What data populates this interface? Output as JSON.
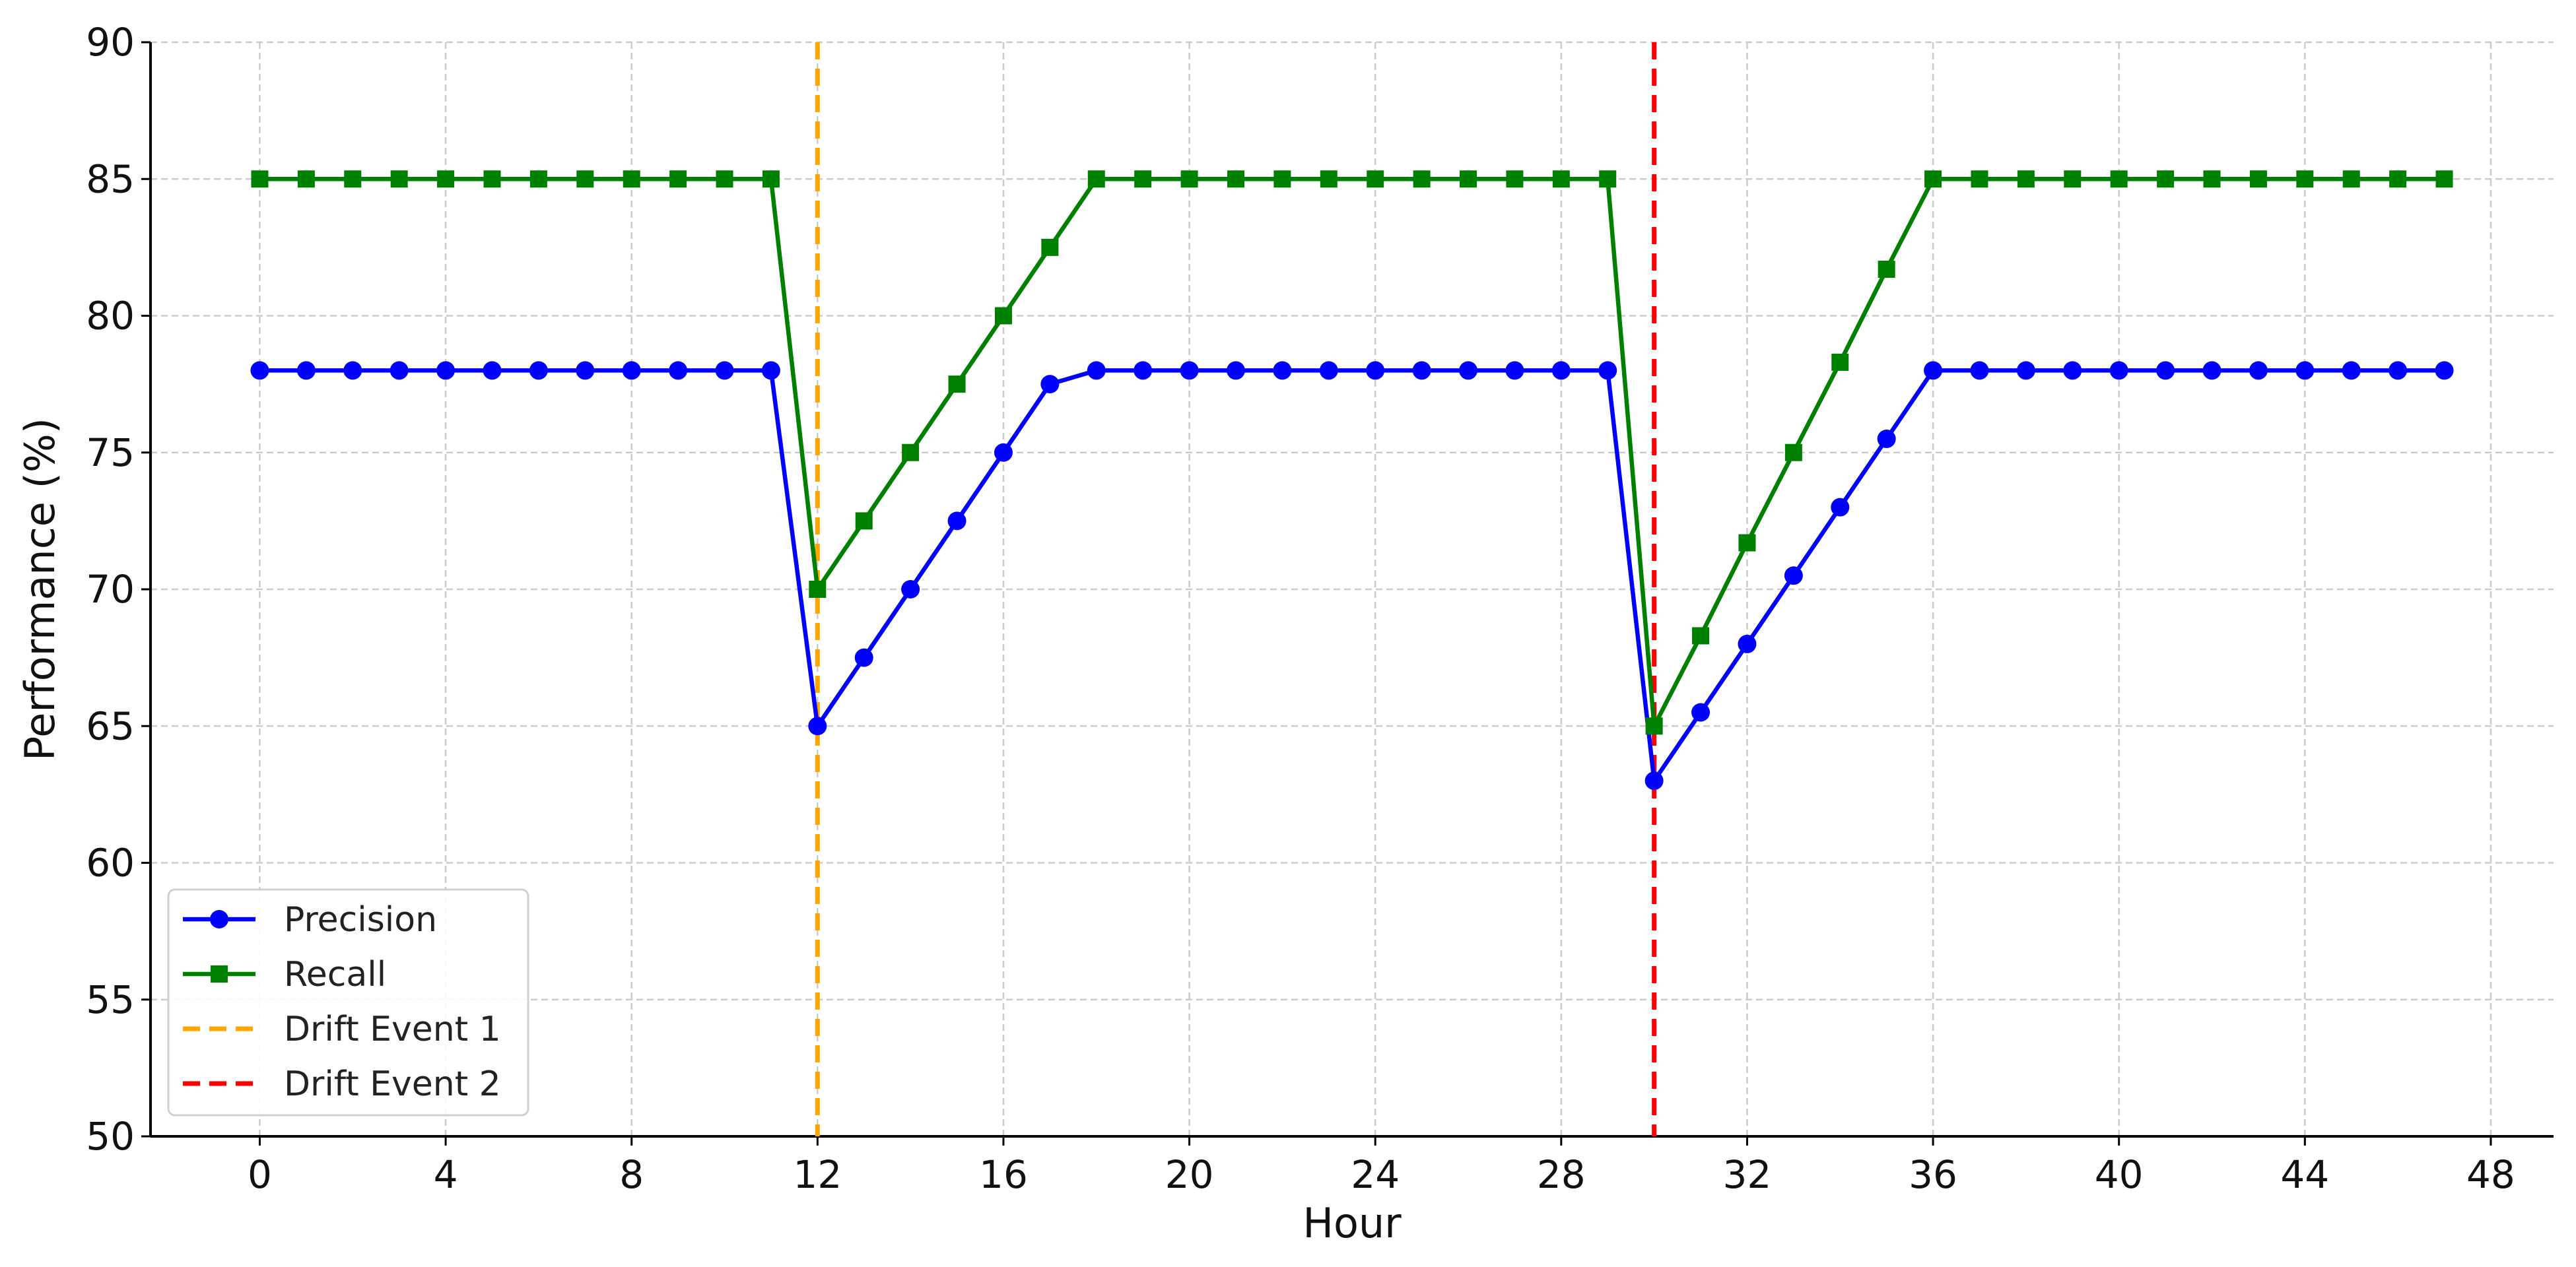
{
  "chart_data": {
    "type": "line",
    "title": "",
    "xlabel": "Hour",
    "ylabel": "Performance (%)",
    "xlim": [
      -2.35,
      49.35
    ],
    "ylim": [
      50,
      90
    ],
    "xticks": [
      0,
      4,
      8,
      12,
      16,
      20,
      24,
      28,
      32,
      36,
      40,
      44,
      48
    ],
    "yticks": [
      50,
      55,
      60,
      65,
      70,
      75,
      80,
      85,
      90
    ],
    "grid": true,
    "legend_position": "lower-left",
    "x": [
      0,
      1,
      2,
      3,
      4,
      5,
      6,
      7,
      8,
      9,
      10,
      11,
      12,
      13,
      14,
      15,
      16,
      17,
      18,
      19,
      20,
      21,
      22,
      23,
      24,
      25,
      26,
      27,
      28,
      29,
      30,
      31,
      32,
      33,
      34,
      35,
      36,
      37,
      38,
      39,
      40,
      41,
      42,
      43,
      44,
      45,
      46,
      47
    ],
    "series": [
      {
        "name": "Precision",
        "color": "#0000ff",
        "marker": "circle",
        "values": [
          78,
          78,
          78,
          78,
          78,
          78,
          78,
          78,
          78,
          78,
          78,
          78,
          65,
          67.5,
          70,
          72.5,
          75,
          77.5,
          78,
          78,
          78,
          78,
          78,
          78,
          78,
          78,
          78,
          78,
          78,
          78,
          63,
          65.5,
          68,
          70.5,
          73,
          75.5,
          78,
          78,
          78,
          78,
          78,
          78,
          78,
          78,
          78,
          78,
          78,
          78
        ]
      },
      {
        "name": "Recall",
        "color": "#008000",
        "marker": "square",
        "values": [
          85,
          85,
          85,
          85,
          85,
          85,
          85,
          85,
          85,
          85,
          85,
          85,
          70,
          72.5,
          75,
          77.5,
          80,
          82.5,
          85,
          85,
          85,
          85,
          85,
          85,
          85,
          85,
          85,
          85,
          85,
          85,
          65,
          68.3,
          71.7,
          75,
          78.3,
          81.7,
          85,
          85,
          85,
          85,
          85,
          85,
          85,
          85,
          85,
          85,
          85,
          85
        ]
      }
    ],
    "vlines": [
      {
        "name": "Drift Event 1",
        "x": 12,
        "color": "#ffa500",
        "style": "dashed"
      },
      {
        "name": "Drift Event 2",
        "x": 30,
        "color": "#ff0000",
        "style": "dashed"
      }
    ]
  }
}
